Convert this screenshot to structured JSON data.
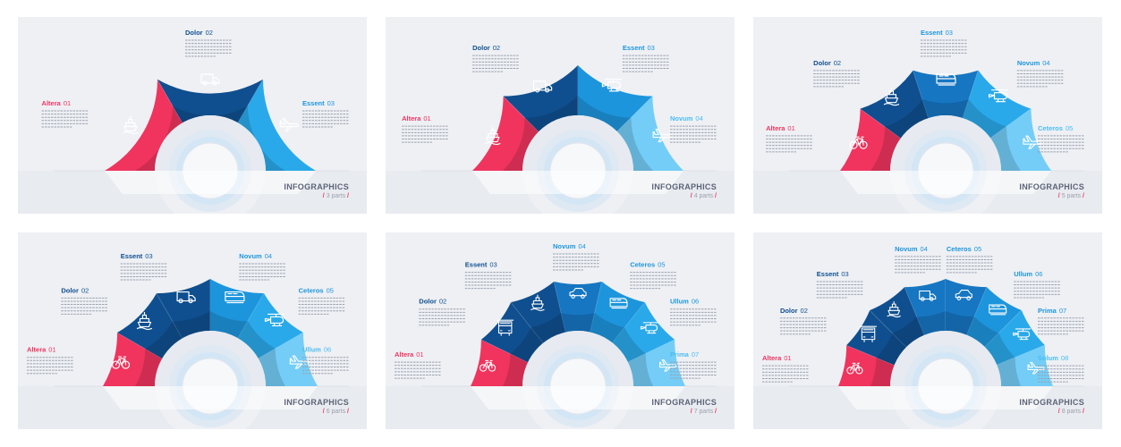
{
  "colors": {
    "red": "#f0345e",
    "navy": "#0f4f8f",
    "blue_dark": "#1676c2",
    "blue": "#1d95dc",
    "blue_mid": "#2aa9ea",
    "blue_light": "#4cbdf1",
    "blue_pale": "#74cdf6",
    "panel_bg": "#eef0f4",
    "title_text": "#5d6478"
  },
  "icon_names": [
    "ship-icon",
    "truck-icon",
    "plane-icon",
    "helicopter-icon",
    "bicycle-icon",
    "train-icon",
    "car-icon",
    "bus-icon"
  ],
  "panels": [
    {
      "footer": {
        "title": "INFOGRAPHICS",
        "slash": "/",
        "parts": "3 parts"
      },
      "segments": [
        {
          "name": "Altera",
          "num": "01",
          "icon": "ship",
          "color": "red"
        },
        {
          "name": "Dolor",
          "num": "02",
          "icon": "truck",
          "color": "navy"
        },
        {
          "name": "Essent",
          "num": "03",
          "icon": "plane",
          "color": "blue_mid"
        }
      ]
    },
    {
      "footer": {
        "title": "INFOGRAPHICS",
        "slash": "/",
        "parts": "4 parts"
      },
      "segments": [
        {
          "name": "Altera",
          "num": "01",
          "icon": "ship",
          "color": "red"
        },
        {
          "name": "Dolor",
          "num": "02",
          "icon": "truck",
          "color": "navy"
        },
        {
          "name": "Essent",
          "num": "03",
          "icon": "helicopter",
          "color": "blue"
        },
        {
          "name": "Novum",
          "num": "04",
          "icon": "plane",
          "color": "blue_pale"
        }
      ]
    },
    {
      "footer": {
        "title": "INFOGRAPHICS",
        "slash": "/",
        "parts": "5 parts"
      },
      "segments": [
        {
          "name": "Altera",
          "num": "01",
          "icon": "bicycle",
          "color": "red"
        },
        {
          "name": "Dolor",
          "num": "02",
          "icon": "ship",
          "color": "navy"
        },
        {
          "name": "Essent",
          "num": "03",
          "icon": "train",
          "color": "blue_dark"
        },
        {
          "name": "Novum",
          "num": "04",
          "icon": "helicopter",
          "color": "blue_mid"
        },
        {
          "name": "Ceteros",
          "num": "05",
          "icon": "plane",
          "color": "blue_pale"
        }
      ]
    },
    {
      "footer": {
        "title": "INFOGRAPHICS",
        "slash": "/",
        "parts": "6 parts"
      },
      "segments": [
        {
          "name": "Altera",
          "num": "01",
          "icon": "bicycle",
          "color": "red"
        },
        {
          "name": "Dolor",
          "num": "02",
          "icon": "ship",
          "color": "navy"
        },
        {
          "name": "Essent",
          "num": "03",
          "icon": "truck",
          "color": "navy"
        },
        {
          "name": "Novum",
          "num": "04",
          "icon": "train",
          "color": "blue"
        },
        {
          "name": "Ceteros",
          "num": "05",
          "icon": "helicopter",
          "color": "blue_mid"
        },
        {
          "name": "Ullum",
          "num": "06",
          "icon": "plane",
          "color": "blue_pale"
        }
      ]
    },
    {
      "footer": {
        "title": "INFOGRAPHICS",
        "slash": "/",
        "parts": "7 parts"
      },
      "segments": [
        {
          "name": "Altera",
          "num": "01",
          "icon": "bicycle",
          "color": "red"
        },
        {
          "name": "Dolor",
          "num": "02",
          "icon": "bus",
          "color": "navy"
        },
        {
          "name": "Essent",
          "num": "03",
          "icon": "ship",
          "color": "navy"
        },
        {
          "name": "Novum",
          "num": "04",
          "icon": "car",
          "color": "blue_dark"
        },
        {
          "name": "Ceteros",
          "num": "05",
          "icon": "train",
          "color": "blue"
        },
        {
          "name": "Ullum",
          "num": "06",
          "icon": "helicopter",
          "color": "blue_mid"
        },
        {
          "name": "Prima",
          "num": "07",
          "icon": "plane",
          "color": "blue_pale"
        }
      ]
    },
    {
      "footer": {
        "title": "INFOGRAPHICS",
        "slash": "/",
        "parts": "8 parts"
      },
      "segments": [
        {
          "name": "Altera",
          "num": "01",
          "icon": "bicycle",
          "color": "red"
        },
        {
          "name": "Dolor",
          "num": "02",
          "icon": "bus",
          "color": "navy"
        },
        {
          "name": "Essent",
          "num": "03",
          "icon": "ship",
          "color": "navy"
        },
        {
          "name": "Novum",
          "num": "04",
          "icon": "truck",
          "color": "blue_dark"
        },
        {
          "name": "Ceteros",
          "num": "05",
          "icon": "car",
          "color": "blue_dark"
        },
        {
          "name": "Ullum",
          "num": "06",
          "icon": "train",
          "color": "blue"
        },
        {
          "name": "Prima",
          "num": "07",
          "icon": "helicopter",
          "color": "blue_mid"
        },
        {
          "name": "Solum",
          "num": "08",
          "icon": "plane",
          "color": "blue_pale"
        }
      ]
    }
  ]
}
